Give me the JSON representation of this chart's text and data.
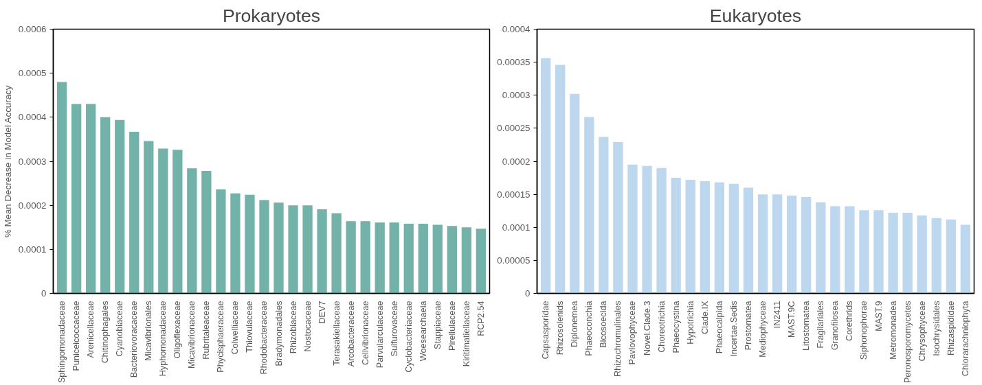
{
  "chart_data": [
    {
      "type": "bar",
      "title": "Prokaryotes",
      "ylabel": "% Mean Decrease in Model Accuracy",
      "color": "#73b2a8",
      "categories": [
        "Sphingomonadaceae",
        "Puniceicoccaceae",
        "Arenicellaceae",
        "Chitinophagales",
        "Cyanobiaceae",
        "Bacteriovoracaceae",
        "Micavibrionales",
        "Hyphomonadaceae",
        "Oligoflexaceae",
        "Micavibrionaceae",
        "Rubritaleaceae",
        "Phycisphaeraceae",
        "Colwelliaceae",
        "Thiovulaceae",
        "Rhodobacteraceae",
        "Bradymonadales",
        "Rhizobiaceae",
        "Nostocaceae",
        "DEV7",
        "Terasakiellaceae",
        "Arcobacteraceae",
        "Cellvibrionaceae",
        "Parvularculaceae",
        "Sulfurovaceae",
        "Cyclobacteriaceae",
        "Woesearchaeia",
        "Stappiaceae",
        "Pirellulaceae",
        "Kiritimatiellaceae",
        "RCP2.54"
      ],
      "values": [
        0.00048,
        0.00043,
        0.00043,
        0.0004,
        0.000394,
        0.000367,
        0.000346,
        0.000329,
        0.000326,
        0.000284,
        0.000278,
        0.000236,
        0.000227,
        0.000224,
        0.000212,
        0.000206,
        0.0002,
        0.0002,
        0.000191,
        0.000182,
        0.000164,
        0.000164,
        0.000161,
        0.000161,
        0.000158,
        0.000158,
        0.000156,
        0.000153,
        0.00015,
        0.000147
      ],
      "ylim": [
        0,
        0.0006
      ],
      "yticks": [
        0,
        0.0001,
        0.0002,
        0.0003,
        0.0004,
        0.0005,
        0.0006
      ]
    },
    {
      "type": "bar",
      "title": "Eukaryotes",
      "color": "#bdd7ee",
      "categories": [
        "Capsasporidae",
        "Rhizosolenids",
        "Diplonemea",
        "Phaeoconchia",
        "Bicosoecida",
        "Rhizochromulinales",
        "Pavlovophyceae",
        "Novel.Clade.3",
        "Choreotrichia",
        "Phaeocystina",
        "Hypotrichia",
        "Clade.IX",
        "Phaeocalpida",
        "Incertae.Sedis",
        "Prostomatea",
        "Mediophyceae",
        "IN2411",
        "MAST.9C",
        "Litostomatea",
        "Fragilariales",
        "Granofilosea",
        "Corethrids",
        "Siphonophorae",
        "MAST.9",
        "Metromonadea",
        "Peronosporomycetes",
        "Chrysophyceae",
        "Isochrysidales",
        "Rhizaspididae",
        "Chlorarachniophyta"
      ],
      "values": [
        0.000356,
        0.000346,
        0.000302,
        0.000267,
        0.000237,
        0.000229,
        0.000195,
        0.000193,
        0.00019,
        0.000175,
        0.000172,
        0.00017,
        0.000168,
        0.000166,
        0.00016,
        0.00015,
        0.00015,
        0.000148,
        0.000146,
        0.000138,
        0.000132,
        0.000132,
        0.000126,
        0.000126,
        0.000122,
        0.000122,
        0.000118,
        0.000114,
        0.000112,
        0.000104
      ],
      "ylim": [
        0,
        0.0004
      ],
      "yticks": [
        0,
        {
          "value": 5e-05,
          "label": "0.00005"
        },
        0.0001,
        0.00015,
        0.0002,
        0.00025,
        0.0003,
        0.00035,
        0.0004
      ]
    }
  ]
}
